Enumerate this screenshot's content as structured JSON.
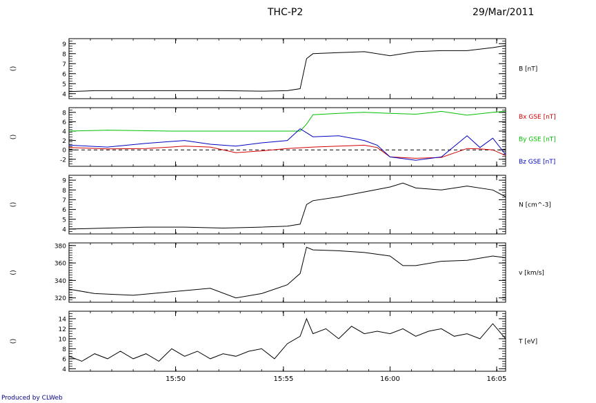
{
  "header": {
    "title": "THC-P2",
    "date": "29/Mar/2011"
  },
  "footer": {
    "produced": "Produced by CLWeb"
  },
  "colors": {
    "axes": "#000000",
    "bx": "#d00000",
    "by": "#00c000",
    "bz": "#0000c0",
    "zero_line": "#000000"
  },
  "chart_data": [
    {
      "type": "line",
      "panel_id": "b",
      "side_label": "()",
      "right_labels": [
        {
          "text": "B [nT]",
          "color": "#000000"
        }
      ],
      "xlim": [
        15.75,
        16.09
      ],
      "x_ticks": [
        15.833,
        15.917,
        16.0,
        16.083
      ],
      "x_tick_labels": [
        "15:50",
        "15:55",
        "16:00",
        "16:05"
      ],
      "ylim": [
        3.5,
        9.5
      ],
      "y_ticks": [
        4,
        5,
        6,
        7,
        8,
        9
      ],
      "y_tick_labels": [
        "4",
        "5",
        "6",
        "7",
        "8",
        "9"
      ],
      "series": [
        {
          "color": "#000000",
          "x": [
            15.75,
            15.77,
            15.8,
            15.83,
            15.87,
            15.9,
            15.92,
            15.93,
            15.935,
            15.94,
            15.96,
            15.98,
            16.0,
            16.02,
            16.04,
            16.06,
            16.08,
            16.09
          ],
          "y": [
            4.2,
            4.3,
            4.3,
            4.3,
            4.3,
            4.25,
            4.3,
            4.5,
            7.5,
            8.0,
            8.1,
            8.2,
            7.8,
            8.2,
            8.3,
            8.3,
            8.6,
            8.8
          ]
        }
      ]
    },
    {
      "type": "line",
      "panel_id": "bgse",
      "side_label": "()",
      "right_labels": [
        {
          "text": "Bx GSE [nT]",
          "color": "#d00000"
        },
        {
          "text": "By GSE [nT]",
          "color": "#00c000"
        },
        {
          "text": "Bz GSE [nT]",
          "color": "#0000c0"
        }
      ],
      "xlim": [
        15.75,
        16.09
      ],
      "x_ticks": [
        15.833,
        15.917,
        16.0,
        16.083
      ],
      "ylim": [
        -3.5,
        9
      ],
      "y_ticks": [
        -2,
        0,
        2,
        4,
        6,
        8
      ],
      "y_tick_labels": [
        "-2",
        "0",
        "2",
        "4",
        "6",
        "8"
      ],
      "zero_line": true,
      "series": [
        {
          "color": "#00c000",
          "x": [
            15.75,
            15.78,
            15.83,
            15.88,
            15.93,
            15.935,
            15.94,
            15.96,
            15.98,
            16.0,
            16.02,
            16.04,
            16.06,
            16.08,
            16.09
          ],
          "y": [
            4.0,
            4.2,
            4.0,
            4.0,
            4.0,
            5.5,
            7.5,
            7.8,
            8.0,
            7.8,
            7.6,
            8.2,
            7.4,
            8.0,
            8.2
          ]
        },
        {
          "color": "#d00000",
          "x": [
            15.75,
            15.78,
            15.81,
            15.84,
            15.86,
            15.88,
            15.9,
            15.92,
            15.94,
            15.96,
            15.98,
            15.99,
            16.0,
            16.02,
            16.04,
            16.06,
            16.07,
            16.08,
            16.09
          ],
          "y": [
            0.5,
            0.2,
            0.3,
            0.8,
            0.6,
            -0.6,
            -0.2,
            0.3,
            0.6,
            0.8,
            1.0,
            0.5,
            -1.5,
            -1.8,
            -1.6,
            0.3,
            0.2,
            0.0,
            -1.2
          ]
        },
        {
          "color": "#0000c0",
          "x": [
            15.75,
            15.78,
            15.81,
            15.84,
            15.86,
            15.88,
            15.9,
            15.92,
            15.93,
            15.94,
            15.96,
            15.98,
            15.99,
            16.0,
            16.02,
            16.04,
            16.06,
            16.07,
            16.08,
            16.09
          ],
          "y": [
            1.0,
            0.6,
            1.4,
            2.0,
            1.2,
            0.8,
            1.5,
            2.0,
            4.5,
            2.8,
            3.0,
            2.0,
            1.0,
            -1.5,
            -2.2,
            -1.5,
            3.0,
            0.5,
            2.5,
            -1.0
          ]
        }
      ]
    },
    {
      "type": "line",
      "panel_id": "n",
      "side_label": "()",
      "right_labels": [
        {
          "text": "N [cm^-3]",
          "color": "#000000"
        }
      ],
      "xlim": [
        15.75,
        16.09
      ],
      "x_ticks": [
        15.833,
        15.917,
        16.0,
        16.083
      ],
      "ylim": [
        3.5,
        9.5
      ],
      "y_ticks": [
        4,
        5,
        6,
        7,
        8,
        9
      ],
      "y_tick_labels": [
        "4",
        "5",
        "6",
        "7",
        "8",
        "9"
      ],
      "series": [
        {
          "color": "#000000",
          "x": [
            15.75,
            15.78,
            15.81,
            15.84,
            15.87,
            15.9,
            15.92,
            15.93,
            15.935,
            15.94,
            15.96,
            15.98,
            16.0,
            16.01,
            16.02,
            16.04,
            16.06,
            16.08,
            16.09
          ],
          "y": [
            4.0,
            4.1,
            4.2,
            4.2,
            4.1,
            4.2,
            4.3,
            4.5,
            6.5,
            6.9,
            7.3,
            7.8,
            8.3,
            8.7,
            8.2,
            8.0,
            8.4,
            8.0,
            7.3
          ]
        }
      ]
    },
    {
      "type": "line",
      "panel_id": "v",
      "side_label": "()",
      "right_labels": [
        {
          "text": "v [km/s]",
          "color": "#000000"
        }
      ],
      "xlim": [
        15.75,
        16.09
      ],
      "x_ticks": [
        15.833,
        15.917,
        16.0,
        16.083
      ],
      "ylim": [
        315,
        383
      ],
      "y_ticks": [
        320,
        340,
        360,
        380
      ],
      "y_tick_labels": [
        "320",
        "340",
        "360",
        "380"
      ],
      "series": [
        {
          "color": "#000000",
          "x": [
            15.75,
            15.77,
            15.8,
            15.83,
            15.86,
            15.88,
            15.9,
            15.92,
            15.93,
            15.935,
            15.94,
            15.96,
            15.98,
            16.0,
            16.01,
            16.02,
            16.04,
            16.06,
            16.08,
            16.09
          ],
          "y": [
            330,
            325,
            323,
            327,
            331,
            320,
            325,
            335,
            348,
            378,
            375,
            374,
            372,
            368,
            357,
            357,
            362,
            363,
            368,
            366
          ]
        }
      ]
    },
    {
      "type": "line",
      "panel_id": "t",
      "side_label": "()",
      "right_labels": [
        {
          "text": "T [eV]",
          "color": "#000000"
        }
      ],
      "xlim": [
        15.75,
        16.09
      ],
      "x_ticks": [
        15.833,
        15.917,
        16.0,
        16.083
      ],
      "x_tick_labels": [
        "15:50",
        "15:55",
        "16:00",
        "16:05"
      ],
      "ylim": [
        3.5,
        15.5
      ],
      "y_ticks": [
        4,
        6,
        8,
        10,
        12,
        14
      ],
      "y_tick_labels": [
        "4",
        "6",
        "8",
        "10",
        "12",
        "14"
      ],
      "series": [
        {
          "color": "#000000",
          "x": [
            15.75,
            15.76,
            15.77,
            15.78,
            15.79,
            15.8,
            15.81,
            15.82,
            15.83,
            15.84,
            15.85,
            15.86,
            15.87,
            15.88,
            15.89,
            15.9,
            15.91,
            15.92,
            15.93,
            15.935,
            15.94,
            15.95,
            15.96,
            15.97,
            15.98,
            15.99,
            16.0,
            16.01,
            16.02,
            16.03,
            16.04,
            16.05,
            16.06,
            16.07,
            16.08,
            16.09
          ],
          "y": [
            6.5,
            5.5,
            7.0,
            6.0,
            7.5,
            6.0,
            7.0,
            5.5,
            8.0,
            6.5,
            7.5,
            6.0,
            7.0,
            6.5,
            7.5,
            8.0,
            6.0,
            9.0,
            10.5,
            14.0,
            11.0,
            12.0,
            10.0,
            12.5,
            11.0,
            11.5,
            11.0,
            12.0,
            10.5,
            11.5,
            12.0,
            10.5,
            11.0,
            10.0,
            13.0,
            10.0
          ]
        }
      ]
    }
  ]
}
